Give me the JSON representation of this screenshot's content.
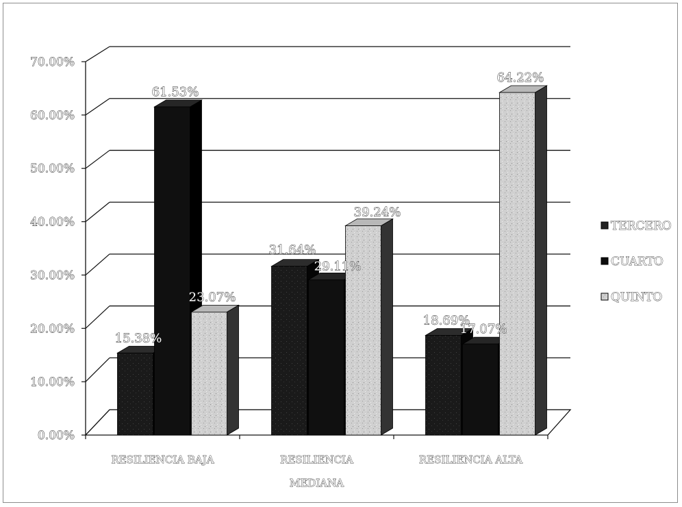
{
  "chart_data": {
    "type": "bar",
    "categories": [
      "RESILIENCIA BAJA",
      "RESILIENCIA MEDIANA",
      "RESILIENCIA ALTA"
    ],
    "category_lines": [
      [
        "RESILIENCIA BAJA"
      ],
      [
        "RESILIENCIA",
        "MEDIANA"
      ],
      [
        "RESILIENCIA ALTA"
      ]
    ],
    "series": [
      {
        "name": "TERCERO",
        "values": [
          15.38,
          31.64,
          18.69
        ],
        "labels": [
          "15.38%",
          "31.64%",
          "18.69%"
        ],
        "color": "#1c1c1c"
      },
      {
        "name": "CUARTO",
        "values": [
          61.53,
          29.11,
          17.07
        ],
        "labels": [
          "61.53%",
          "29.11%",
          "17.07%"
        ],
        "color": "#0d0d0d"
      },
      {
        "name": "QUINTO",
        "values": [
          23.07,
          39.24,
          64.22
        ],
        "labels": [
          "23.07%",
          "39.24%",
          "64.22%"
        ],
        "color": "#d2d2d2"
      }
    ],
    "yticks": [
      "0.00%",
      "10.00%",
      "20.00%",
      "30.00%",
      "40.00%",
      "50.00%",
      "60.00%",
      "70.00%"
    ],
    "ylim": [
      0,
      70
    ],
    "legend_position": "right",
    "grid": true,
    "style": "3d-clustered-column"
  }
}
